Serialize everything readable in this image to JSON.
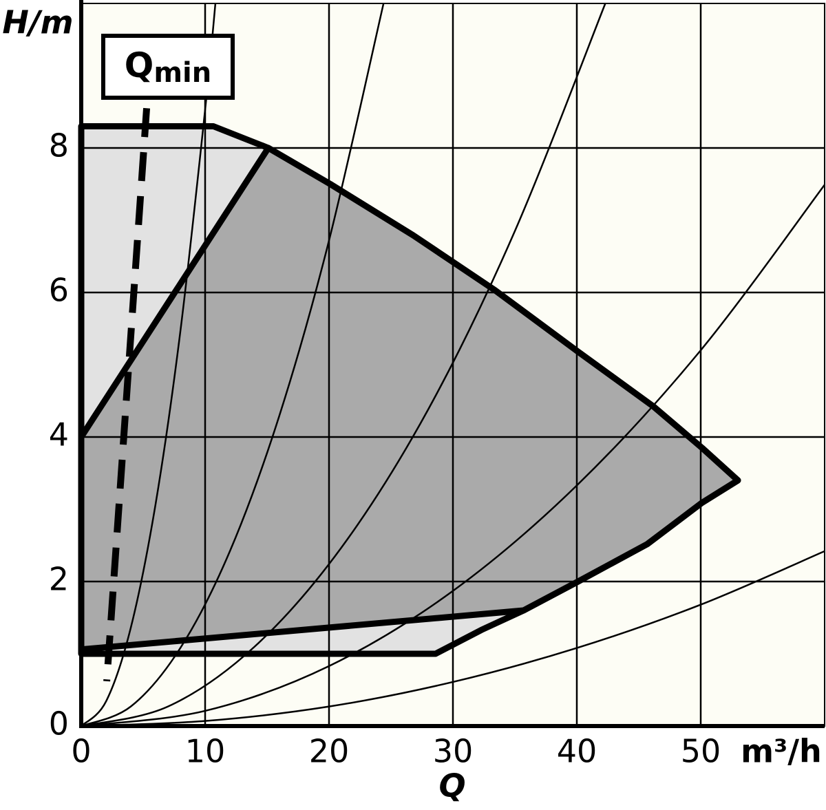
{
  "chart_data": {
    "type": "line",
    "y_label": "H/m",
    "x_unit": "m³/h",
    "x_label": "Q",
    "annotation": {
      "main": "Q",
      "sub": "min"
    },
    "xlim": [
      0,
      60
    ],
    "ylim": [
      0,
      10
    ],
    "xticks": [
      0,
      10,
      20,
      30,
      40,
      50
    ],
    "yticks": [
      0,
      2,
      4,
      6,
      8
    ],
    "grid": true,
    "background": "#fdfdf5",
    "areas": [
      {
        "color": "#e2e2e2",
        "x": [
          0,
          10.67,
          15.1,
          20.1,
          26.8,
          33.4,
          40.1,
          46.2,
          50.1,
          53,
          50.1,
          45.7,
          40.1,
          35.7,
          32.3,
          28.6,
          0
        ],
        "values": [
          8.3,
          8.3,
          8.0,
          7.5,
          6.79,
          6.03,
          5.18,
          4.42,
          3.85,
          3.4,
          3.09,
          2.52,
          2.0,
          1.6,
          1.33,
          1.0,
          1.0
        ]
      },
      {
        "color": "#aaaaaa",
        "x": [
          0,
          15.1,
          20.1,
          26.8,
          33.4,
          40.1,
          46.2,
          50.1,
          53,
          50.1,
          45.7,
          40.1,
          35.7,
          0
        ],
        "values": [
          4.0,
          8.0,
          7.5,
          6.79,
          6.03,
          5.18,
          4.42,
          3.85,
          3.4,
          3.09,
          2.52,
          2.0,
          1.6,
          1.06
        ]
      }
    ],
    "series": [
      {
        "color": "#000000",
        "x": [
          0,
          2,
          4,
          6,
          8,
          10,
          10.83
        ],
        "values": [
          0,
          0.34,
          1.36,
          3.07,
          5.46,
          8.53,
          10
        ]
      },
      {
        "color": "#000000",
        "x": [
          0,
          4,
          8,
          12,
          16,
          20,
          24.4
        ],
        "values": [
          0,
          0.27,
          1.08,
          2.42,
          4.3,
          6.72,
          10
        ]
      },
      {
        "color": "#000000",
        "x": [
          0,
          7,
          14,
          21,
          28,
          35,
          42.3
        ],
        "values": [
          0,
          0.27,
          1.1,
          2.47,
          4.38,
          6.85,
          10
        ]
      },
      {
        "color": "#000000",
        "x": [
          0,
          10,
          20,
          30,
          40,
          50,
          60
        ],
        "values": [
          0,
          0.21,
          0.83,
          1.87,
          3.33,
          5.2,
          7.49
        ]
      },
      {
        "color": "#000000",
        "x": [
          0,
          10,
          20,
          30,
          40,
          50,
          60
        ],
        "values": [
          0,
          0.07,
          0.27,
          0.61,
          1.08,
          1.68,
          2.42
        ]
      }
    ],
    "qmin": {
      "color": "#000000",
      "x": [
        5.28,
        2.06
      ],
      "values": [
        8.55,
        0.62
      ]
    }
  }
}
